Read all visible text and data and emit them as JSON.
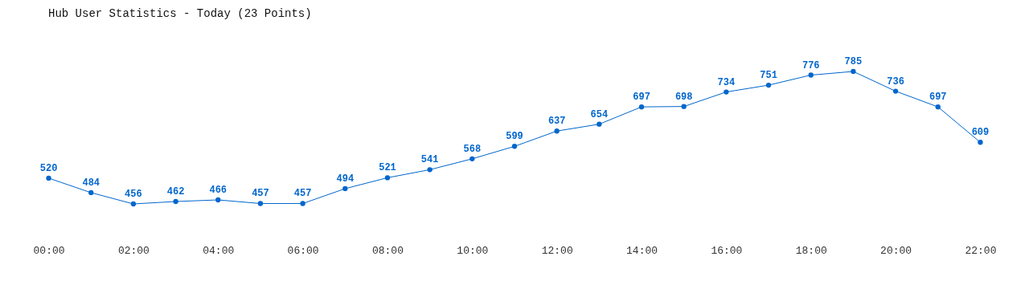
{
  "chart_data": {
    "type": "line",
    "title": "Hub User Statistics - Today (23 Points)",
    "categories": [
      "00:00",
      null,
      "02:00",
      null,
      "04:00",
      null,
      "06:00",
      null,
      "08:00",
      null,
      "10:00",
      null,
      "12:00",
      null,
      "14:00",
      null,
      "16:00",
      null,
      "18:00",
      null,
      "20:00",
      null,
      "22:00"
    ],
    "series": [
      {
        "color": "#0066cc",
        "values": [
          520,
          484,
          456,
          462,
          466,
          457,
          457,
          494,
          521,
          541,
          568,
          599,
          637,
          654,
          697,
          698,
          734,
          751,
          776,
          785,
          736,
          697,
          609
        ]
      }
    ],
    "marker": "circle",
    "line_style": "solid",
    "data_labels": true,
    "grid": false,
    "tick_labels": "x"
  }
}
